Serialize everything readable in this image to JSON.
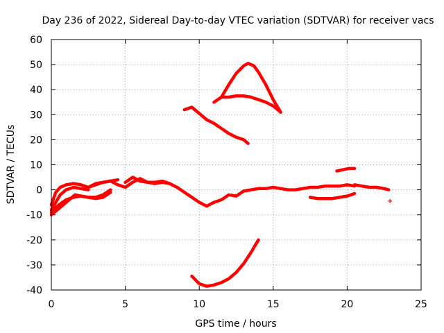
{
  "chart_data": {
    "type": "scatter",
    "title": "Day 236 of 2022, Sidereal Day-to-day VTEC variation (SDTVAR) for receiver vacs",
    "xlabel": "GPS time / hours",
    "ylabel": "SDTVAR / TECUs",
    "xlim": [
      0,
      25
    ],
    "ylim": [
      -40,
      60
    ],
    "x_ticks": [
      0,
      5,
      10,
      15,
      20,
      25
    ],
    "y_ticks": [
      -40,
      -30,
      -20,
      -10,
      0,
      10,
      20,
      30,
      40,
      50,
      60
    ],
    "grid": true,
    "color": "#ff0000",
    "series": [
      {
        "name": "band-upper",
        "x": [
          0.0,
          0.3,
          0.6,
          1.0,
          1.5,
          2.0,
          2.5,
          3.0,
          3.5,
          4.0,
          4.5
        ],
        "y": [
          -6,
          -1,
          1,
          2,
          2.5,
          2,
          1,
          2.5,
          3,
          3.5,
          4
        ]
      },
      {
        "name": "band-mid",
        "x": [
          0.0,
          0.3,
          0.6,
          1.0,
          1.5,
          2.0,
          2.5
        ],
        "y": [
          -8,
          -5,
          -2,
          0,
          1,
          0.5,
          0
        ]
      },
      {
        "name": "band-lower",
        "x": [
          0.0,
          0.4,
          0.8,
          1.2,
          1.6,
          2.0,
          2.5,
          3.0,
          3.5,
          4.0
        ],
        "y": [
          -10,
          -8,
          -6,
          -4,
          -2,
          -2.5,
          -3,
          -3,
          -2,
          0
        ]
      },
      {
        "name": "lower-tail",
        "x": [
          0.0,
          0.5,
          1.0,
          1.5,
          2.0,
          2.5,
          3.0,
          3.5,
          4.0
        ],
        "y": [
          -9,
          -6,
          -4,
          -3,
          -2.5,
          -3,
          -3.5,
          -3,
          -1
        ]
      },
      {
        "name": "main",
        "x": [
          2.5,
          3.0,
          3.5,
          4.0,
          4.5,
          5.0,
          5.5,
          6.0,
          6.5,
          7.0,
          7.5,
          8.0,
          8.5,
          9.0,
          9.5,
          10.0,
          10.5,
          11.0,
          11.5,
          12.0,
          12.5,
          13.0,
          13.5,
          14.0,
          14.5,
          15.0,
          15.5,
          16.0,
          16.5,
          17.0,
          17.5,
          18.0,
          18.5,
          19.0,
          19.5,
          20.0,
          20.5
        ],
        "y": [
          1,
          2,
          3,
          3.5,
          2,
          1,
          3,
          4.5,
          3,
          2.5,
          3,
          2.5,
          1,
          -1,
          -3,
          -5,
          -6.5,
          -5,
          -4,
          -2,
          -2.5,
          -0.5,
          0,
          0.5,
          0.5,
          1,
          0.5,
          0,
          0,
          0.5,
          1,
          1,
          1.5,
          1.5,
          1.5,
          2,
          1.5
        ]
      },
      {
        "name": "bump-6",
        "x": [
          5.0,
          5.5,
          6.0,
          6.5,
          7.0,
          7.5,
          8.0
        ],
        "y": [
          3,
          5,
          3.5,
          3,
          3,
          3.5,
          2.5
        ]
      },
      {
        "name": "lower-right",
        "x": [
          17.5,
          18.0,
          18.5,
          19.0,
          19.5,
          20.0,
          20.5
        ],
        "y": [
          -3,
          -3.5,
          -3.5,
          -3.5,
          -3,
          -2.5,
          -1.5
        ]
      },
      {
        "name": "short-top-right",
        "x": [
          19.3,
          19.7,
          20.1,
          20.5
        ],
        "y": [
          7.5,
          8,
          8.5,
          8.5
        ]
      },
      {
        "name": "end-segment",
        "x": [
          20.5,
          21.0,
          21.5,
          22.0,
          22.5,
          22.8
        ],
        "y": [
          2,
          1.5,
          1,
          1,
          0.5,
          0
        ]
      },
      {
        "name": "falling-upper",
        "x": [
          9.0,
          9.5,
          10.0,
          10.5,
          11.0,
          11.5,
          12.0,
          12.5,
          13.0,
          13.3
        ],
        "y": [
          32,
          33,
          30.5,
          28,
          26.5,
          24.5,
          22.5,
          21,
          20,
          18.5
        ]
      },
      {
        "name": "peak-top",
        "x": [
          11.0,
          11.5,
          12.0,
          12.5,
          13.0,
          13.3,
          13.7,
          14.0,
          14.5,
          15.0,
          15.5
        ],
        "y": [
          35,
          37,
          42,
          46.5,
          49.5,
          50.5,
          49.5,
          47,
          42,
          36,
          31
        ]
      },
      {
        "name": "peak-bottom",
        "x": [
          11.5,
          12.0,
          12.5,
          13.0,
          13.5,
          14.0,
          14.5,
          15.0,
          15.5
        ],
        "y": [
          37,
          37,
          37.5,
          37.5,
          37,
          36,
          35,
          33.5,
          31
        ]
      },
      {
        "name": "bottom-curve",
        "x": [
          9.5,
          10.0,
          10.5,
          11.0,
          11.5,
          12.0,
          12.5,
          13.0,
          13.5,
          14.0
        ],
        "y": [
          -34.5,
          -37.5,
          -38.5,
          -38,
          -37,
          -35.5,
          -33,
          -29.5,
          -25,
          -20
        ]
      }
    ],
    "markers": [
      {
        "x": 22.9,
        "y": -4.5
      }
    ]
  }
}
